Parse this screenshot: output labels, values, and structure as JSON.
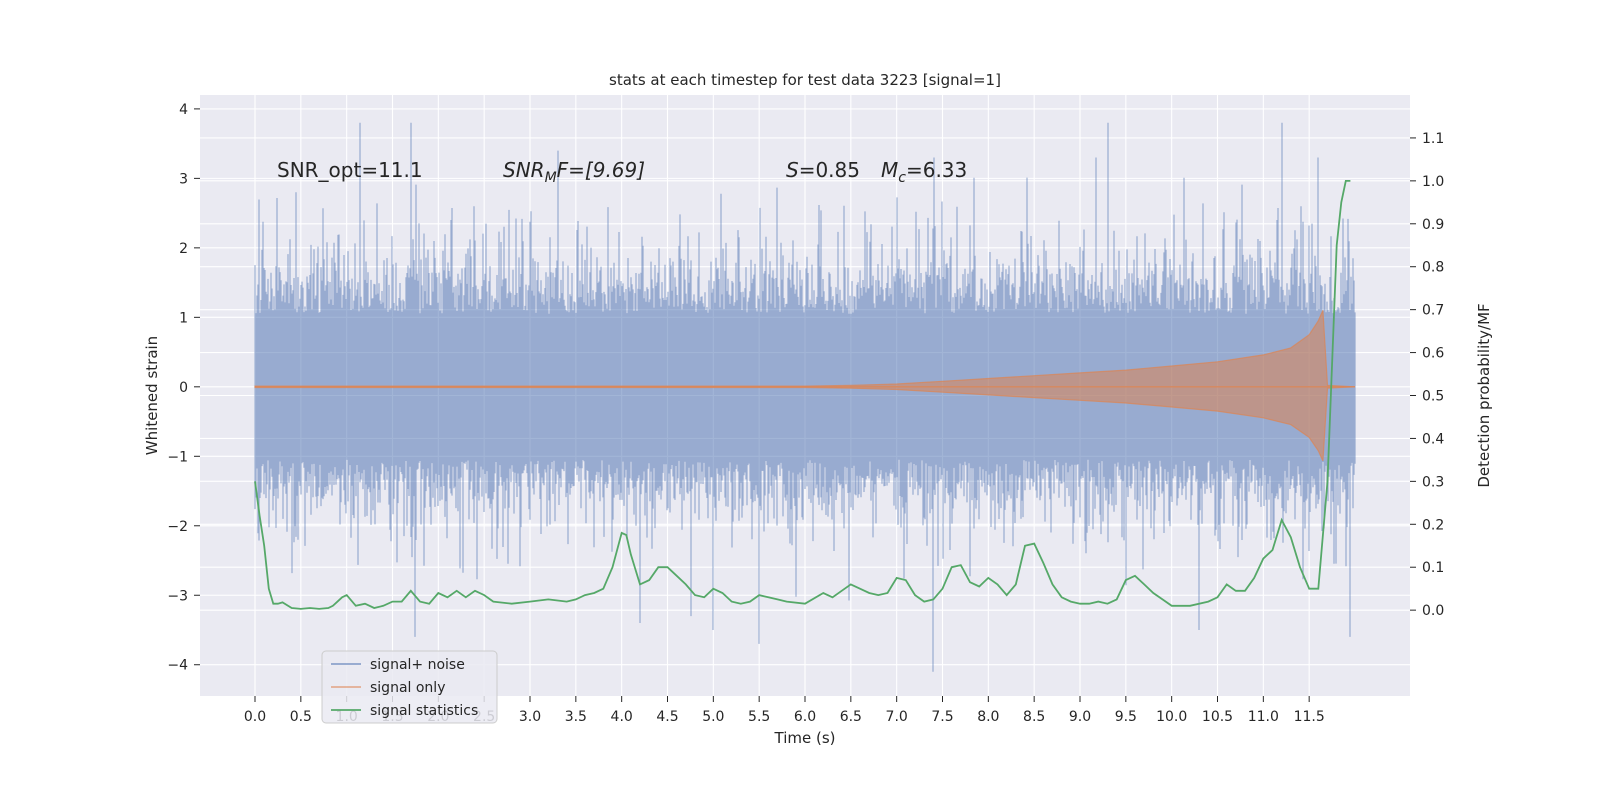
{
  "chart_data": {
    "type": "line",
    "title": "stats at each timestep for test data 3223 [signal=1]",
    "xlabel": "Time (s)",
    "ylabel_left": "Whitened strain",
    "ylabel_right": "Detection probability/MF",
    "xlim": [
      -0.6,
      12.6
    ],
    "ylim_left": [
      -4.45,
      4.2
    ],
    "ylim_right": [
      -0.2,
      1.2
    ],
    "x_ticks": [
      "0.0",
      "0.5",
      "1.0",
      "1.5",
      "2.0",
      "2.5",
      "3.0",
      "3.5",
      "4.0",
      "4.5",
      "5.0",
      "5.5",
      "6.0",
      "6.5",
      "7.0",
      "7.5",
      "8.0",
      "8.5",
      "9.0",
      "9.5",
      "10.0",
      "10.5",
      "11.0",
      "11.5"
    ],
    "y_ticks_left": [
      "−4",
      "−3",
      "−2",
      "−1",
      "0",
      "1",
      "2",
      "3",
      "4"
    ],
    "y_ticks_right": [
      "0.0",
      "0.1",
      "0.2",
      "0.3",
      "0.4",
      "0.5",
      "0.6",
      "0.7",
      "0.8",
      "0.9",
      "1.0",
      "1.1"
    ],
    "grid": true,
    "legend_position": "lower-left",
    "annotations": {
      "snr_opt": "SNR_opt=11.1",
      "snr_mf_base": "SNR",
      "snr_mf_sub": "M",
      "snr_mf_tail": "F=[9.69]",
      "s_base": "S",
      "s_val": "=0.85",
      "mc_base": "M",
      "mc_sub": "c",
      "mc_val": "=6.33"
    },
    "series": [
      {
        "name": "signal+ noise",
        "axis": "left",
        "color": "#4c72b0",
        "x_range": [
          0.0,
          12.0
        ],
        "band_core": [
          -1.0,
          1.0
        ],
        "typical_extent": [
          -2.3,
          2.4
        ],
        "notable_peaks": [
          {
            "x": 0.45,
            "y": 2.8
          },
          {
            "x": 1.15,
            "y": 3.8
          },
          {
            "x": 1.7,
            "y": 3.8
          },
          {
            "x": 1.75,
            "y": -3.6
          },
          {
            "x": 3.3,
            "y": 3.4
          },
          {
            "x": 4.2,
            "y": -3.4
          },
          {
            "x": 5.0,
            "y": -3.5
          },
          {
            "x": 5.5,
            "y": -3.7
          },
          {
            "x": 7.4,
            "y": -4.1
          },
          {
            "x": 9.3,
            "y": 3.8
          },
          {
            "x": 10.3,
            "y": -3.5
          },
          {
            "x": 11.2,
            "y": 3.8
          },
          {
            "x": 11.95,
            "y": -3.6
          }
        ]
      },
      {
        "name": "signal only",
        "axis": "left",
        "color": "#dd8452",
        "x": [
          0.0,
          1.0,
          2.0,
          3.0,
          4.0,
          5.0,
          6.0,
          6.5,
          7.0,
          7.5,
          8.0,
          8.5,
          9.0,
          9.5,
          10.0,
          10.5,
          11.0,
          11.3,
          11.5,
          11.6,
          11.65,
          11.7,
          12.0
        ],
        "amplitude": [
          0.01,
          0.01,
          0.01,
          0.01,
          0.01,
          0.01,
          0.01,
          0.02,
          0.04,
          0.08,
          0.12,
          0.16,
          0.2,
          0.24,
          0.3,
          0.36,
          0.46,
          0.56,
          0.75,
          0.95,
          1.1,
          0.02,
          0.0
        ]
      },
      {
        "name": "signal statistics",
        "axis": "right",
        "color": "#55a868",
        "x": [
          0.0,
          0.05,
          0.1,
          0.15,
          0.2,
          0.25,
          0.3,
          0.4,
          0.5,
          0.6,
          0.7,
          0.8,
          0.85,
          0.9,
          0.95,
          1.0,
          1.1,
          1.2,
          1.3,
          1.4,
          1.5,
          1.6,
          1.7,
          1.8,
          1.9,
          2.0,
          2.1,
          2.2,
          2.3,
          2.4,
          2.5,
          2.6,
          2.8,
          3.0,
          3.2,
          3.4,
          3.5,
          3.6,
          3.7,
          3.8,
          3.9,
          4.0,
          4.05,
          4.1,
          4.2,
          4.3,
          4.4,
          4.5,
          4.6,
          4.7,
          4.8,
          4.9,
          5.0,
          5.1,
          5.2,
          5.3,
          5.4,
          5.5,
          5.6,
          5.7,
          5.8,
          6.0,
          6.2,
          6.3,
          6.4,
          6.5,
          6.6,
          6.7,
          6.8,
          6.9,
          7.0,
          7.1,
          7.2,
          7.3,
          7.4,
          7.5,
          7.6,
          7.7,
          7.8,
          7.9,
          8.0,
          8.1,
          8.2,
          8.3,
          8.4,
          8.5,
          8.6,
          8.7,
          8.8,
          8.9,
          9.0,
          9.1,
          9.2,
          9.3,
          9.4,
          9.5,
          9.6,
          9.7,
          9.8,
          9.9,
          10.0,
          10.2,
          10.4,
          10.5,
          10.6,
          10.7,
          10.8,
          10.9,
          11.0,
          11.1,
          11.2,
          11.3,
          11.4,
          11.5,
          11.6,
          11.7,
          11.8,
          11.85,
          11.9,
          11.95
        ],
        "values": [
          0.3,
          0.22,
          0.15,
          0.05,
          0.015,
          0.015,
          0.018,
          0.005,
          0.003,
          0.005,
          0.003,
          0.005,
          0.01,
          0.02,
          0.03,
          0.035,
          0.01,
          0.015,
          0.005,
          0.01,
          0.02,
          0.02,
          0.045,
          0.02,
          0.015,
          0.04,
          0.03,
          0.045,
          0.03,
          0.045,
          0.035,
          0.02,
          0.015,
          0.02,
          0.025,
          0.02,
          0.025,
          0.035,
          0.04,
          0.05,
          0.1,
          0.18,
          0.175,
          0.13,
          0.06,
          0.07,
          0.1,
          0.1,
          0.08,
          0.06,
          0.035,
          0.03,
          0.05,
          0.04,
          0.02,
          0.015,
          0.02,
          0.035,
          0.03,
          0.025,
          0.02,
          0.015,
          0.04,
          0.03,
          0.045,
          0.06,
          0.05,
          0.04,
          0.035,
          0.04,
          0.075,
          0.07,
          0.035,
          0.02,
          0.025,
          0.05,
          0.1,
          0.105,
          0.065,
          0.055,
          0.075,
          0.06,
          0.035,
          0.06,
          0.15,
          0.155,
          0.11,
          0.06,
          0.03,
          0.02,
          0.015,
          0.015,
          0.02,
          0.015,
          0.025,
          0.07,
          0.08,
          0.06,
          0.04,
          0.025,
          0.01,
          0.01,
          0.02,
          0.03,
          0.06,
          0.045,
          0.045,
          0.075,
          0.12,
          0.14,
          0.21,
          0.17,
          0.1,
          0.05,
          0.05,
          0.3,
          0.85,
          0.95,
          1.0,
          1.0
        ]
      }
    ]
  }
}
